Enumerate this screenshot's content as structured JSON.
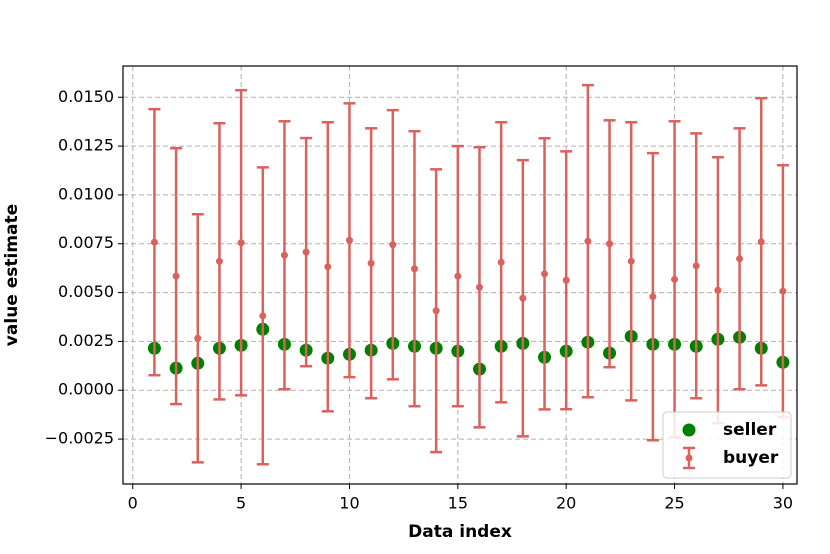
{
  "chart_data": {
    "type": "scatter",
    "xlabel": "Data index",
    "ylabel": "value estimate",
    "x": [
      1,
      2,
      3,
      4,
      5,
      6,
      7,
      8,
      9,
      10,
      11,
      12,
      13,
      14,
      15,
      16,
      17,
      18,
      19,
      20,
      21,
      22,
      23,
      24,
      25,
      26,
      27,
      28,
      29,
      30
    ],
    "series": [
      {
        "name": "seller",
        "color": "#008000",
        "values": [
          0.00215,
          0.00113,
          0.00138,
          0.00215,
          0.0023,
          0.00312,
          0.00235,
          0.00205,
          0.00164,
          0.00184,
          0.00205,
          0.0024,
          0.00225,
          0.00215,
          0.002,
          0.00108,
          0.00225,
          0.0024,
          0.00169,
          0.002,
          0.00246,
          0.0019,
          0.00276,
          0.00235,
          0.00235,
          0.00225,
          0.00261,
          0.00271,
          0.00215,
          0.00143
        ]
      },
      {
        "name": "buyer",
        "color": "#d9625d",
        "values": [
          0.00758,
          0.00584,
          0.00266,
          0.0066,
          0.00755,
          0.00381,
          0.00691,
          0.00707,
          0.00632,
          0.00768,
          0.0065,
          0.00745,
          0.00622,
          0.00407,
          0.00584,
          0.00527,
          0.00655,
          0.00471,
          0.00596,
          0.00563,
          0.00763,
          0.0075,
          0.0066,
          0.00479,
          0.00568,
          0.00637,
          0.00512,
          0.00673,
          0.0076,
          0.00507
        ],
        "errors": [
          0.00681,
          0.00655,
          0.00635,
          0.00707,
          0.00781,
          0.0076,
          0.00686,
          0.00584,
          0.0074,
          0.00701,
          0.00691,
          0.00689,
          0.00704,
          0.00724,
          0.00666,
          0.00717,
          0.00717,
          0.00707,
          0.00694,
          0.0066,
          0.00799,
          0.00632,
          0.00712,
          0.00735,
          0.00809,
          0.00678,
          0.00681,
          0.00668,
          0.00735,
          0.00645
        ]
      }
    ],
    "xlim": [
      -0.45,
      30.65
    ],
    "xticks": [
      0,
      5,
      10,
      15,
      20,
      25,
      30
    ],
    "ylim": [
      -0.0048,
      0.0166
    ],
    "yticks": [
      {
        "value": -0.0025,
        "label": "−0.0025"
      },
      {
        "value": 0,
        "label": "0.0000"
      },
      {
        "value": 0.0025,
        "label": "0.0025"
      },
      {
        "value": 0.005,
        "label": "0.0050"
      },
      {
        "value": 0.0075,
        "label": "0.0075"
      },
      {
        "value": 0.01,
        "label": "0.0100"
      },
      {
        "value": 0.0125,
        "label": "0.0125"
      },
      {
        "value": 0.015,
        "label": "0.0150"
      }
    ],
    "grid": true,
    "legend": "lower right"
  }
}
